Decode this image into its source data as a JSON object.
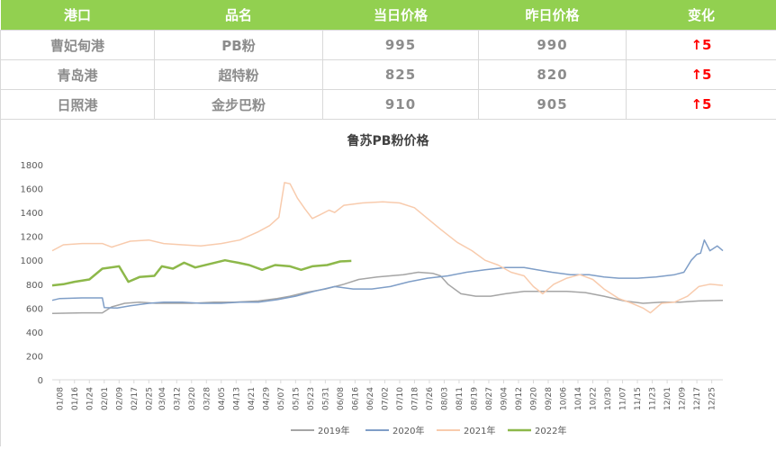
{
  "table": {
    "headers": [
      "港口",
      "品名",
      "当日价格",
      "昨日价格",
      "变化"
    ],
    "rows": [
      {
        "port": "曹妃甸港",
        "product": "PB粉",
        "today": "995",
        "yesterday": "990",
        "change": "↑5"
      },
      {
        "port": "青岛港",
        "product": "超特粉",
        "today": "825",
        "yesterday": "820",
        "change": "↑5"
      },
      {
        "port": "日照港",
        "product": "金步巴粉",
        "today": "910",
        "yesterday": "905",
        "change": "↑5"
      }
    ],
    "colors": {
      "header_bg": "#92d050",
      "header_text": "#ffffff",
      "cell_text": "#8c8c8c",
      "change_up": "#ff0000"
    }
  },
  "chart_data": {
    "type": "line",
    "title": "鲁苏PB粉价格",
    "xlabel": "",
    "ylabel": "",
    "ylim": [
      0,
      1800
    ],
    "yticks": [
      0,
      200,
      400,
      600,
      800,
      1000,
      1200,
      1400,
      1600,
      1800
    ],
    "xticks": [
      "01/08",
      "01/16",
      "01/24",
      "02/01",
      "02/09",
      "02/17",
      "02/25",
      "03/04",
      "03/12",
      "03/20",
      "03/28",
      "04/05",
      "04/13",
      "04/21",
      "04/29",
      "05/07",
      "05/15",
      "05/23",
      "05/31",
      "06/08",
      "06/16",
      "06/24",
      "07/02",
      "07/10",
      "07/18",
      "07/26",
      "08/03",
      "08/11",
      "08/19",
      "08/27",
      "09/04",
      "09/12",
      "09/20",
      "09/28",
      "10/06",
      "10/14",
      "10/22",
      "10/30",
      "11/07",
      "11/15",
      "11/23",
      "12/01",
      "12/09",
      "12/17",
      "12/25"
    ],
    "x_domain": [
      "01/04",
      "12/31"
    ],
    "grid": false,
    "legend": "bottom",
    "series": [
      {
        "name": "2019年",
        "color": "#a5a5a5",
        "points": [
          [
            "01/04",
            555
          ],
          [
            "01/20",
            560
          ],
          [
            "01/31",
            560
          ],
          [
            "02/05",
            610
          ],
          [
            "02/12",
            640
          ],
          [
            "02/20",
            650
          ],
          [
            "03/01",
            640
          ],
          [
            "03/10",
            640
          ],
          [
            "03/20",
            640
          ],
          [
            "04/01",
            650
          ],
          [
            "04/12",
            650
          ],
          [
            "04/25",
            660
          ],
          [
            "05/05",
            680
          ],
          [
            "05/12",
            700
          ],
          [
            "05/20",
            730
          ],
          [
            "05/31",
            760
          ],
          [
            "06/10",
            800
          ],
          [
            "06/18",
            840
          ],
          [
            "06/28",
            860
          ],
          [
            "07/05",
            870
          ],
          [
            "07/12",
            880
          ],
          [
            "07/20",
            900
          ],
          [
            "07/28",
            890
          ],
          [
            "08/01",
            870
          ],
          [
            "08/05",
            800
          ],
          [
            "08/12",
            720
          ],
          [
            "08/20",
            700
          ],
          [
            "08/28",
            700
          ],
          [
            "09/05",
            720
          ],
          [
            "09/15",
            740
          ],
          [
            "09/25",
            740
          ],
          [
            "10/08",
            740
          ],
          [
            "10/18",
            730
          ],
          [
            "10/28",
            700
          ],
          [
            "11/08",
            660
          ],
          [
            "11/18",
            640
          ],
          [
            "11/28",
            650
          ],
          [
            "12/08",
            650
          ],
          [
            "12/18",
            660
          ],
          [
            "12/31",
            665
          ]
        ]
      },
      {
        "name": "2020年",
        "color": "#7f9ec7",
        "points": [
          [
            "01/04",
            665
          ],
          [
            "01/08",
            680
          ],
          [
            "01/20",
            685
          ],
          [
            "01/31",
            685
          ],
          [
            "02/01",
            605
          ],
          [
            "02/08",
            600
          ],
          [
            "02/15",
            620
          ],
          [
            "02/25",
            640
          ],
          [
            "03/05",
            650
          ],
          [
            "03/15",
            650
          ],
          [
            "03/25",
            640
          ],
          [
            "04/05",
            640
          ],
          [
            "04/15",
            650
          ],
          [
            "04/25",
            650
          ],
          [
            "05/05",
            670
          ],
          [
            "05/15",
            700
          ],
          [
            "05/25",
            740
          ],
          [
            "06/05",
            780
          ],
          [
            "06/15",
            760
          ],
          [
            "06/25",
            760
          ],
          [
            "07/05",
            780
          ],
          [
            "07/15",
            820
          ],
          [
            "07/25",
            850
          ],
          [
            "08/05",
            870
          ],
          [
            "08/15",
            900
          ],
          [
            "08/25",
            920
          ],
          [
            "09/05",
            940
          ],
          [
            "09/15",
            940
          ],
          [
            "09/22",
            920
          ],
          [
            "09/30",
            900
          ],
          [
            "10/10",
            880
          ],
          [
            "10/20",
            880
          ],
          [
            "10/28",
            860
          ],
          [
            "11/05",
            850
          ],
          [
            "11/15",
            850
          ],
          [
            "11/25",
            860
          ],
          [
            "12/05",
            880
          ],
          [
            "12/10",
            900
          ],
          [
            "12/14",
            1000
          ],
          [
            "12/17",
            1050
          ],
          [
            "12/19",
            1060
          ],
          [
            "12/21",
            1170
          ],
          [
            "12/24",
            1080
          ],
          [
            "12/28",
            1120
          ],
          [
            "12/31",
            1080
          ]
        ]
      },
      {
        "name": "2021年",
        "color": "#f8cbad",
        "points": [
          [
            "01/04",
            1080
          ],
          [
            "01/10",
            1130
          ],
          [
            "01/20",
            1140
          ],
          [
            "01/31",
            1140
          ],
          [
            "02/05",
            1110
          ],
          [
            "02/15",
            1160
          ],
          [
            "02/25",
            1170
          ],
          [
            "03/05",
            1140
          ],
          [
            "03/15",
            1130
          ],
          [
            "03/25",
            1120
          ],
          [
            "04/05",
            1140
          ],
          [
            "04/15",
            1170
          ],
          [
            "04/25",
            1240
          ],
          [
            "05/01",
            1290
          ],
          [
            "05/06",
            1360
          ],
          [
            "05/09",
            1650
          ],
          [
            "05/12",
            1640
          ],
          [
            "05/16",
            1520
          ],
          [
            "05/20",
            1430
          ],
          [
            "05/24",
            1350
          ],
          [
            "05/28",
            1380
          ],
          [
            "06/02",
            1420
          ],
          [
            "06/05",
            1400
          ],
          [
            "06/10",
            1460
          ],
          [
            "06/20",
            1480
          ],
          [
            "07/01",
            1490
          ],
          [
            "07/10",
            1480
          ],
          [
            "07/18",
            1440
          ],
          [
            "07/25",
            1350
          ],
          [
            "08/01",
            1260
          ],
          [
            "08/10",
            1150
          ],
          [
            "08/18",
            1080
          ],
          [
            "08/25",
            1000
          ],
          [
            "09/01",
            960
          ],
          [
            "09/08",
            900
          ],
          [
            "09/15",
            870
          ],
          [
            "09/20",
            780
          ],
          [
            "09/25",
            720
          ],
          [
            "10/01",
            800
          ],
          [
            "10/08",
            850
          ],
          [
            "10/15",
            880
          ],
          [
            "10/22",
            840
          ],
          [
            "10/28",
            760
          ],
          [
            "11/05",
            680
          ],
          [
            "11/12",
            640
          ],
          [
            "11/18",
            600
          ],
          [
            "11/22",
            560
          ],
          [
            "11/28",
            640
          ],
          [
            "12/05",
            650
          ],
          [
            "12/12",
            700
          ],
          [
            "12/18",
            780
          ],
          [
            "12/24",
            800
          ],
          [
            "12/31",
            790
          ]
        ]
      },
      {
        "name": "2022年",
        "color": "#8db84a",
        "points": [
          [
            "01/04",
            790
          ],
          [
            "01/10",
            800
          ],
          [
            "01/16",
            820
          ],
          [
            "01/24",
            840
          ],
          [
            "01/31",
            930
          ],
          [
            "02/09",
            950
          ],
          [
            "02/14",
            820
          ],
          [
            "02/20",
            860
          ],
          [
            "02/28",
            870
          ],
          [
            "03/04",
            950
          ],
          [
            "03/10",
            930
          ],
          [
            "03/16",
            980
          ],
          [
            "03/22",
            940
          ],
          [
            "03/30",
            970
          ],
          [
            "04/07",
            1000
          ],
          [
            "04/14",
            980
          ],
          [
            "04/20",
            960
          ],
          [
            "04/27",
            920
          ],
          [
            "05/04",
            960
          ],
          [
            "05/12",
            950
          ],
          [
            "05/18",
            920
          ],
          [
            "05/24",
            950
          ],
          [
            "06/01",
            960
          ],
          [
            "06/08",
            990
          ],
          [
            "06/14",
            995
          ]
        ]
      }
    ]
  }
}
